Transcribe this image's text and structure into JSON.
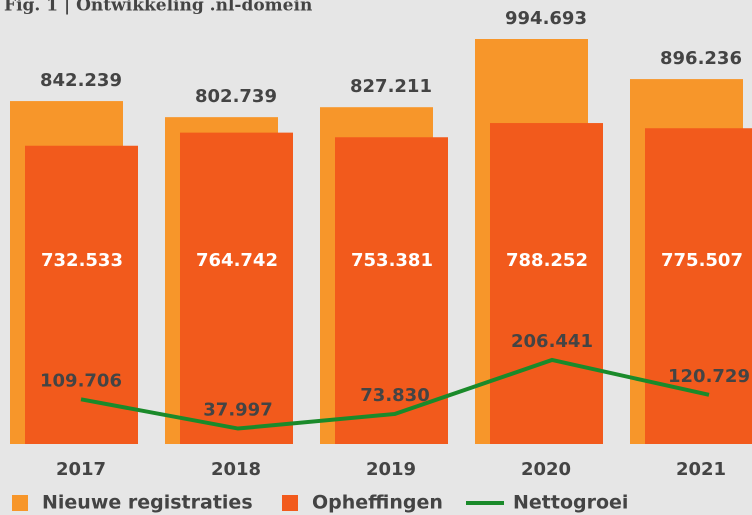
{
  "chart_data": {
    "type": "bar",
    "title": "Fig. 1 | Ontwikkeling .nl-domein",
    "categories": [
      "2017",
      "2018",
      "2019",
      "2020",
      "2021"
    ],
    "series": [
      {
        "name": "Nieuwe registraties",
        "color": "#f7962a",
        "values": [
          842239,
          802739,
          827211,
          994693,
          896236
        ],
        "value_labels": [
          "842.239",
          "802.739",
          "827.211",
          "994.693",
          "896.236"
        ]
      },
      {
        "name": "Opheffingen",
        "color": "#f25a1c",
        "values": [
          732533,
          764742,
          753381,
          788252,
          775507
        ],
        "value_labels": [
          "732.533",
          "764.742",
          "753.381",
          "788.252",
          "775.507"
        ]
      },
      {
        "name": "Nettogroei",
        "color": "#1a8a2a",
        "type": "line",
        "values": [
          109706,
          37997,
          73830,
          206441,
          120729
        ],
        "value_labels": [
          "109.706",
          "37.997",
          "73.830",
          "206.441",
          "120.729"
        ]
      }
    ]
  }
}
